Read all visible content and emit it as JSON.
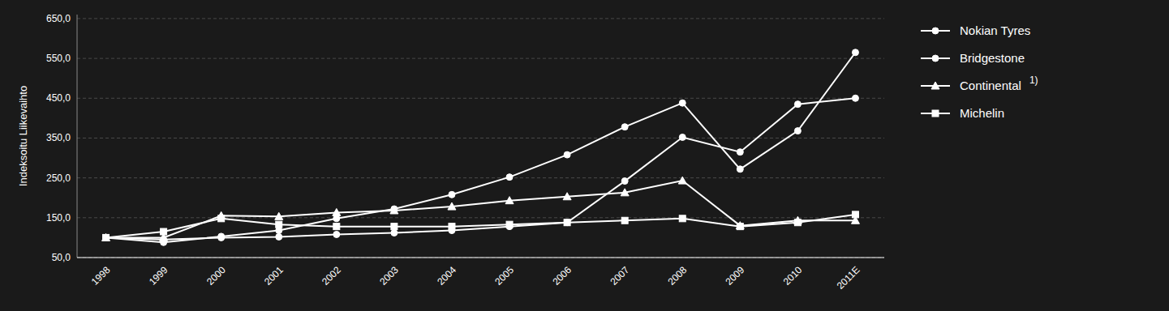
{
  "chart_data": {
    "type": "line",
    "y_label": "Indeksoitu Liikevaihto",
    "categories": [
      "1998",
      "1999",
      "2000",
      "2001",
      "2002",
      "2003",
      "2004",
      "2005",
      "2006",
      "2007",
      "2008",
      "2009",
      "2010",
      "2011E"
    ],
    "series": [
      {
        "name": "Nokian Tyres",
        "color": "#ffffff",
        "marker": "circle",
        "values": [
          100,
          88,
          103,
          118,
          148,
          172,
          208,
          252,
          308,
          378,
          438,
          272,
          368,
          565
        ]
      },
      {
        "name": "Bridgestone",
        "color": "#ffffff",
        "marker": "circle",
        "values": [
          100,
          95,
          100,
          102,
          108,
          112,
          118,
          128,
          138,
          242,
          352,
          315,
          435,
          450
        ]
      },
      {
        "name": "Continental",
        "color": "#ffffff",
        "marker": "triangle",
        "values": [
          100,
          100,
          155,
          153,
          163,
          168,
          178,
          193,
          203,
          213,
          243,
          130,
          143,
          143
        ]
      },
      {
        "name": "Michelin",
        "color": "#ffffff",
        "marker": "square",
        "values": [
          100,
          115,
          148,
          133,
          128,
          128,
          128,
          133,
          138,
          143,
          148,
          128,
          138,
          158
        ]
      }
    ],
    "ylim": [
      50,
      660
    ],
    "yticks": [
      {
        "value": 50,
        "label": "50,0"
      },
      {
        "value": 150,
        "label": "150,0"
      },
      {
        "value": 250,
        "label": "250,0"
      },
      {
        "value": 350,
        "label": "350,0"
      },
      {
        "value": 450,
        "label": "450,0"
      },
      {
        "value": 550,
        "label": "550,0"
      },
      {
        "value": 650,
        "label": "650,0"
      }
    ],
    "grid": true,
    "legend": "right",
    "annotations": [
      "1)"
    ]
  }
}
